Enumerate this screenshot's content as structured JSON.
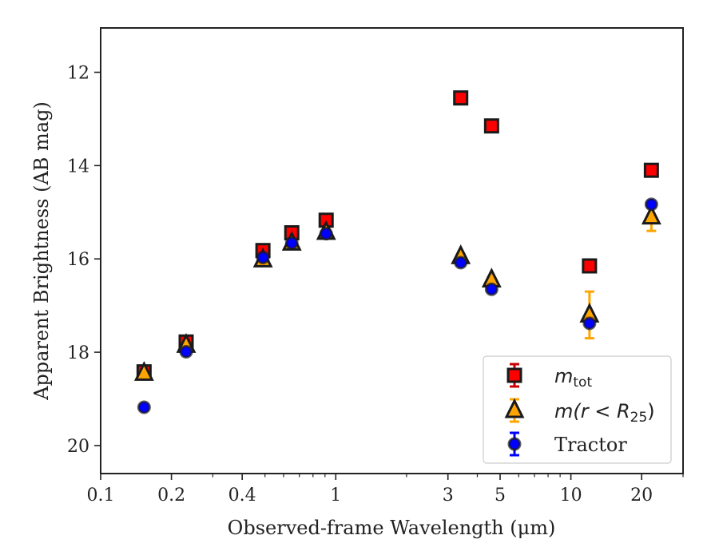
{
  "chart_data": {
    "type": "scatter",
    "xlabel": "Observed-frame Wavelength (μm)",
    "ylabel": "Apparent Brightness (AB mag)",
    "x_scale": "log",
    "xlim": [
      0.1,
      30
    ],
    "ylim": [
      20.6,
      11.05
    ],
    "y_inverted": true,
    "x_ticks": [
      {
        "value": 0.1,
        "label": "0.1"
      },
      {
        "value": 0.2,
        "label": "0.2"
      },
      {
        "value": 0.4,
        "label": "0.4"
      },
      {
        "value": 1,
        "label": "1"
      },
      {
        "value": 3,
        "label": "3"
      },
      {
        "value": 5,
        "label": "5"
      },
      {
        "value": 10,
        "label": "10"
      },
      {
        "value": 20,
        "label": "20"
      }
    ],
    "y_ticks": [
      {
        "value": 12,
        "label": "12"
      },
      {
        "value": 14,
        "label": "14"
      },
      {
        "value": 16,
        "label": "16"
      },
      {
        "value": 18,
        "label": "18"
      },
      {
        "value": 20,
        "label": "20"
      }
    ],
    "grid": false,
    "legend_position": "lower-right",
    "series": [
      {
        "name": "m_tot",
        "legend_label": "m",
        "legend_sub": "tot",
        "marker": "square",
        "color": "#ff0000",
        "error_color": "#cc0000",
        "points": [
          {
            "x": 0.153,
            "y": 18.42,
            "err": 0.05
          },
          {
            "x": 0.231,
            "y": 17.78,
            "err": 0.05
          },
          {
            "x": 0.49,
            "y": 15.82,
            "err": 0.05
          },
          {
            "x": 0.65,
            "y": 15.44,
            "err": 0.05
          },
          {
            "x": 0.91,
            "y": 15.17,
            "err": 0.05
          },
          {
            "x": 3.4,
            "y": 12.55,
            "err": 0.05
          },
          {
            "x": 4.6,
            "y": 13.15,
            "err": 0.05
          },
          {
            "x": 12.0,
            "y": 16.15,
            "err": 0.05
          },
          {
            "x": 22.0,
            "y": 14.1,
            "err": 0.05
          }
        ]
      },
      {
        "name": "m(r < R25)",
        "legend_label": "m(r < R",
        "legend_sub": "25",
        "marker": "triangle",
        "color": "#ffa500",
        "error_color": "#ffa500",
        "points": [
          {
            "x": 0.153,
            "y": 18.45,
            "err": 0.05
          },
          {
            "x": 0.231,
            "y": 17.85,
            "err": 0.05
          },
          {
            "x": 0.49,
            "y": 16.02,
            "err": 0.05
          },
          {
            "x": 0.65,
            "y": 15.66,
            "err": 0.05
          },
          {
            "x": 0.91,
            "y": 15.43,
            "err": 0.05
          },
          {
            "x": 3.4,
            "y": 15.95,
            "err": 0.05
          },
          {
            "x": 4.6,
            "y": 16.45,
            "err": 0.05
          },
          {
            "x": 12.0,
            "y": 17.2,
            "err": 0.5
          },
          {
            "x": 22.0,
            "y": 15.1,
            "err": 0.3
          }
        ]
      },
      {
        "name": "Tractor",
        "legend_label": "Tractor",
        "marker": "circle",
        "color": "#0000ff",
        "error_color": "#0000ff",
        "points": [
          {
            "x": 0.153,
            "y": 19.18,
            "err": 0.05
          },
          {
            "x": 0.231,
            "y": 17.99,
            "err": 0.05
          },
          {
            "x": 0.49,
            "y": 15.97,
            "err": 0.05
          },
          {
            "x": 0.65,
            "y": 15.66,
            "err": 0.05
          },
          {
            "x": 0.91,
            "y": 15.46,
            "err": 0.05
          },
          {
            "x": 3.4,
            "y": 16.08,
            "err": 0.05
          },
          {
            "x": 4.6,
            "y": 16.65,
            "err": 0.05
          },
          {
            "x": 12.0,
            "y": 17.38,
            "err": 0.05
          },
          {
            "x": 22.0,
            "y": 14.83,
            "err": 0.05
          }
        ]
      }
    ]
  }
}
